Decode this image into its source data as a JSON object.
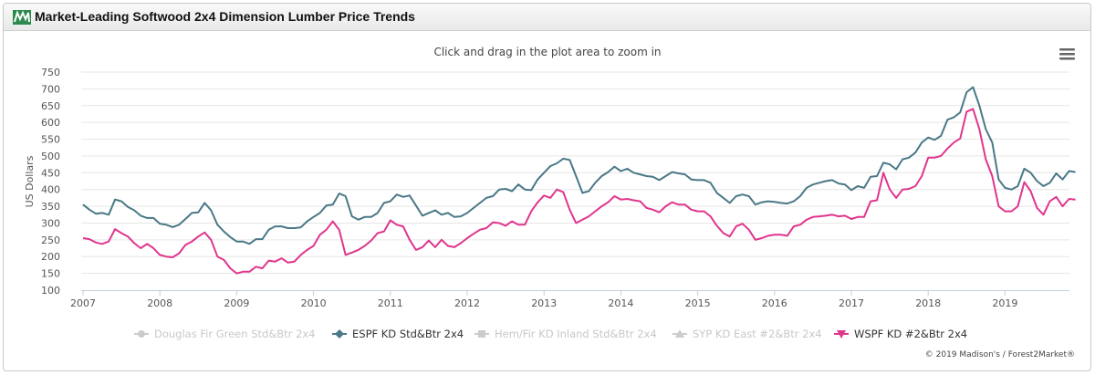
{
  "header": {
    "title": "Market-Leading Softwood 2x4 Dimension Lumber Price Trends",
    "logo_icon": "forest2market-logo-icon"
  },
  "menu_icon": "hamburger-menu-icon",
  "zoom_hint": "Click and drag in the plot area to zoom in",
  "credit": "© 2019 Madison's / Forest2Market®",
  "colors": {
    "espf": "#4a7886",
    "wspf": "#e0358d",
    "hidden": "#cccccc",
    "grid": "#e6e6e6"
  },
  "chart_data": {
    "type": "line",
    "ylabel": "US Dollars",
    "ylim": [
      100,
      750
    ],
    "y_ticks": [
      100,
      150,
      200,
      250,
      300,
      350,
      400,
      450,
      500,
      550,
      600,
      650,
      700,
      750
    ],
    "x_ticks": [
      "2007",
      "2008",
      "2009",
      "2010",
      "2011",
      "2012",
      "2013",
      "2014",
      "2015",
      "2016",
      "2017",
      "2018",
      "2019"
    ],
    "x_start_year": 2007,
    "points_per_year": 12,
    "grid": "horizontal",
    "legend_position": "bottom",
    "legend": [
      {
        "name": "Douglas Fir Green Std&Btr 2x4",
        "marker": "circle",
        "visible": false
      },
      {
        "name": "ESPF KD Std&Btr 2x4",
        "marker": "diamond",
        "visible": true
      },
      {
        "name": "Hem/Fir KD Inland Std&Btr 2x4",
        "marker": "square",
        "visible": false
      },
      {
        "name": "SYP KD East #2&Btr 2x4",
        "marker": "triangle",
        "visible": false
      },
      {
        "name": "WSPF KD #2&Btr 2x4",
        "marker": "triangle-down",
        "visible": true
      }
    ],
    "series": [
      {
        "name": "ESPF KD Std&Btr 2x4",
        "values": [
          355,
          340,
          328,
          330,
          325,
          370,
          365,
          348,
          338,
          322,
          315,
          315,
          298,
          295,
          288,
          295,
          312,
          330,
          332,
          360,
          338,
          295,
          275,
          258,
          245,
          245,
          238,
          252,
          252,
          280,
          290,
          290,
          285,
          285,
          287,
          305,
          318,
          330,
          352,
          355,
          388,
          380,
          320,
          310,
          318,
          318,
          330,
          360,
          365,
          385,
          378,
          382,
          352,
          322,
          330,
          338,
          325,
          330,
          318,
          320,
          330,
          345,
          360,
          375,
          380,
          400,
          402,
          395,
          415,
          400,
          398,
          430,
          450,
          470,
          478,
          492,
          488,
          440,
          390,
          395,
          420,
          440,
          452,
          468,
          455,
          462,
          450,
          445,
          440,
          438,
          428,
          440,
          452,
          448,
          445,
          430,
          428,
          428,
          420,
          390,
          375,
          360,
          380,
          385,
          380,
          355,
          362,
          365,
          363,
          360,
          358,
          365,
          380,
          405,
          415,
          420,
          425,
          428,
          418,
          415,
          398,
          410,
          405,
          438,
          440,
          480,
          475,
          460,
          490,
          495,
          510,
          540,
          555,
          548,
          560,
          608,
          615,
          630,
          690,
          705,
          650,
          580,
          540,
          430,
          405,
          400,
          410,
          462,
          450,
          425,
          410,
          420,
          448,
          430,
          455,
          452
        ]
      },
      {
        "name": "WSPF KD #2&Btr 2x4",
        "values": [
          255,
          252,
          242,
          238,
          245,
          282,
          270,
          260,
          240,
          225,
          238,
          225,
          205,
          200,
          198,
          210,
          235,
          245,
          260,
          272,
          250,
          200,
          190,
          165,
          150,
          155,
          155,
          170,
          165,
          188,
          185,
          195,
          182,
          185,
          205,
          220,
          232,
          265,
          280,
          305,
          280,
          205,
          212,
          220,
          232,
          248,
          270,
          275,
          308,
          295,
          290,
          250,
          220,
          228,
          248,
          228,
          250,
          232,
          228,
          240,
          255,
          268,
          280,
          285,
          302,
          300,
          292,
          305,
          295,
          295,
          335,
          362,
          382,
          375,
          400,
          392,
          340,
          300,
          310,
          320,
          335,
          350,
          362,
          380,
          370,
          372,
          368,
          365,
          345,
          340,
          332,
          350,
          362,
          355,
          355,
          340,
          335,
          335,
          320,
          292,
          270,
          260,
          290,
          298,
          280,
          250,
          255,
          262,
          265,
          265,
          262,
          290,
          295,
          310,
          318,
          320,
          322,
          325,
          320,
          322,
          312,
          318,
          318,
          365,
          368,
          450,
          400,
          375,
          400,
          402,
          410,
          440,
          495,
          495,
          500,
          522,
          540,
          552,
          632,
          640,
          580,
          490,
          440,
          350,
          335,
          335,
          350,
          422,
          395,
          345,
          325,
          365,
          378,
          350,
          372,
          370
        ]
      }
    ]
  }
}
